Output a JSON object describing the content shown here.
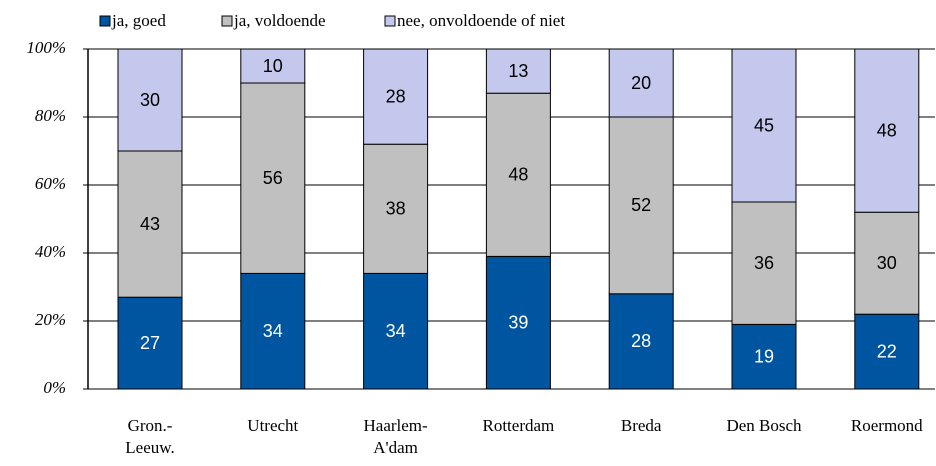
{
  "chart_data": {
    "type": "stacked_bar",
    "categories": [
      "Gron.-\nLeeuw.",
      "Utrecht",
      "Haarlem-\nA'dam",
      "Rotterdam",
      "Breda",
      "Den Bosch",
      "Roermond"
    ],
    "series": [
      {
        "name": "ja, goed",
        "color": "#0055a0",
        "values": [
          27,
          34,
          34,
          39,
          28,
          19,
          22
        ]
      },
      {
        "name": "ja, voldoende",
        "color": "#c0c0c0",
        "values": [
          43,
          56,
          38,
          48,
          52,
          36,
          30
        ]
      },
      {
        "name": "nee, onvoldoende of niet",
        "color": "#c3c8ec",
        "values": [
          30,
          10,
          28,
          13,
          20,
          45,
          48
        ]
      }
    ],
    "ylim": [
      0,
      100
    ],
    "yticks": [
      {
        "value": 0,
        "label": "0%"
      },
      {
        "value": 20,
        "label": "20%"
      },
      {
        "value": 40,
        "label": "40%"
      },
      {
        "value": 60,
        "label": "60%"
      },
      {
        "value": 80,
        "label": "80%"
      },
      {
        "value": 100,
        "label": "100%"
      }
    ],
    "grid": true,
    "legend": "top"
  }
}
